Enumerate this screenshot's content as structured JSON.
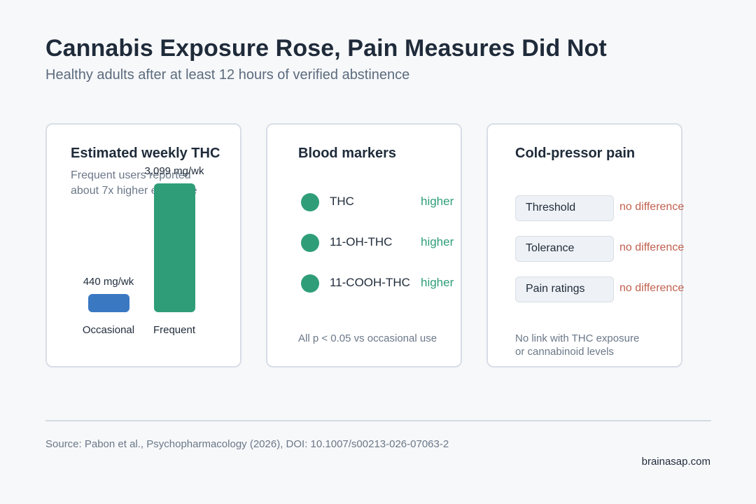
{
  "header": {
    "title": "Cannabis Exposure Rose, Pain Measures Did Not",
    "subtitle": "Healthy adults after at least 12 hours of verified abstinence"
  },
  "thc_card": {
    "title": "Estimated weekly THC",
    "note_line1": "Frequent users reported",
    "note_line2": "about 7x higher exposure",
    "chart_data": {
      "type": "bar",
      "title": "Estimated weekly THC",
      "categories": [
        "Occasional",
        "Frequent"
      ],
      "values": [
        440,
        3099
      ],
      "value_labels": [
        "440 mg/wk",
        "3,099 mg/wk"
      ],
      "colors": [
        "#3a78c2",
        "#2f9e78"
      ]
    }
  },
  "blood_card": {
    "title": "Blood markers",
    "markers": [
      {
        "name": "THC",
        "result": "higher"
      },
      {
        "name": "11-OH-THC",
        "result": "higher"
      },
      {
        "name": "11-COOH-THC",
        "result": "higher"
      }
    ],
    "footnote": "All p < 0.05 vs occasional use"
  },
  "pain_card": {
    "title": "Cold-pressor pain",
    "measures": [
      {
        "name": "Threshold",
        "result": "no difference"
      },
      {
        "name": "Tolerance",
        "result": "no difference"
      },
      {
        "name": "Pain ratings",
        "result": "no difference"
      }
    ],
    "footnote_line1": "No link with THC exposure",
    "footnote_line2": "or cannabinoid levels"
  },
  "footer": {
    "source": "Source: Pabon et al., Psychopharmacology (2026), DOI: 10.1007/s00213-026-07063-2",
    "brand": "brainasap.com"
  },
  "colors": {
    "accent_green": "#2f9e78",
    "accent_blue": "#3a78c2",
    "no_difference": "#c0604e"
  }
}
